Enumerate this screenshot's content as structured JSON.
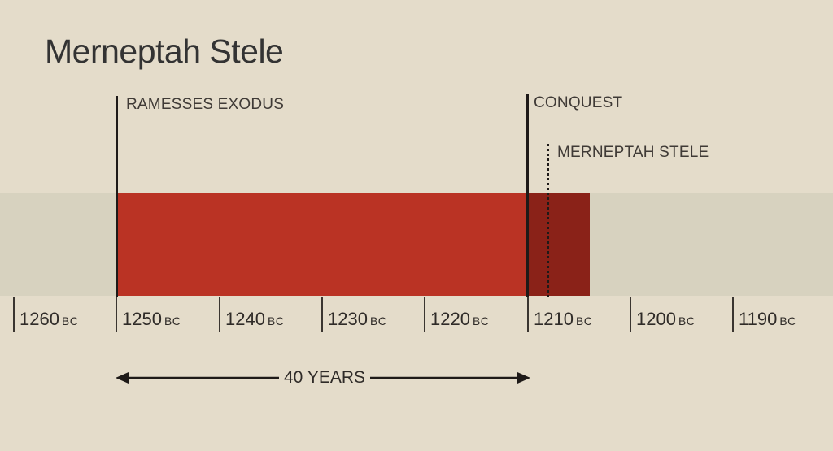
{
  "title": "Merneptah Stele",
  "events": {
    "exodus": "RAMESSES EXODUS",
    "conquest": "CONQUEST",
    "stele": "MERNEPTAH STELE"
  },
  "axis": {
    "ticks": [
      {
        "year": "1260",
        "era": "BC"
      },
      {
        "year": "1250",
        "era": "BC"
      },
      {
        "year": "1240",
        "era": "BC"
      },
      {
        "year": "1230",
        "era": "BC"
      },
      {
        "year": "1220",
        "era": "BC"
      },
      {
        "year": "1210",
        "era": "BC"
      },
      {
        "year": "1200",
        "era": "BC"
      },
      {
        "year": "1190",
        "era": "BC"
      }
    ]
  },
  "span_label": "40 YEARS",
  "colors": {
    "background": "#e4dcca",
    "band": "#d7d2bf",
    "exodus_period": "#ba3324",
    "conquest_period": "#8a2218",
    "lines": "#1e1a18"
  }
}
